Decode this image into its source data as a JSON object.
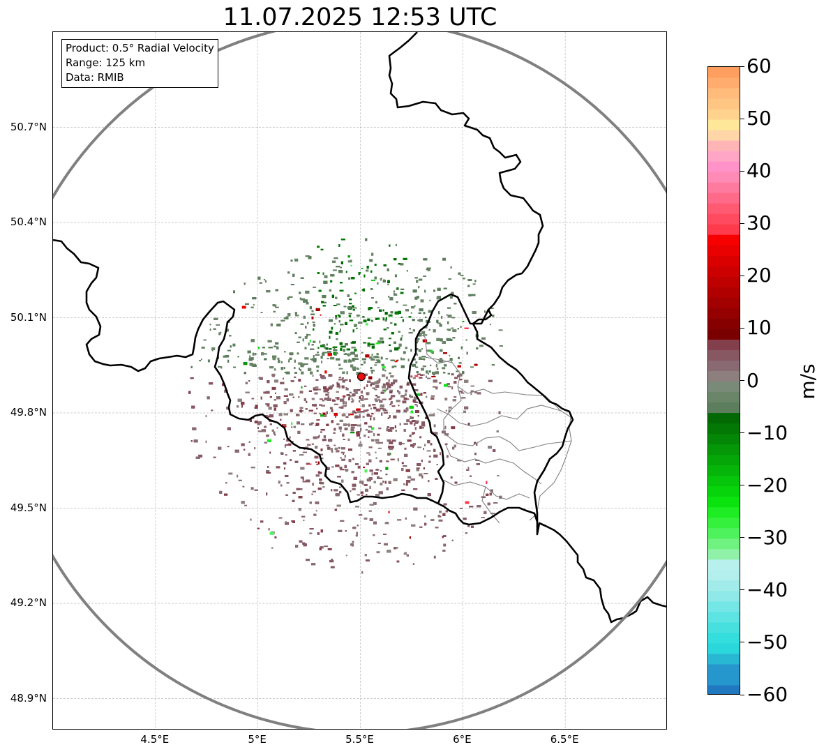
{
  "title": "11.07.2025 12:53 UTC",
  "info": {
    "product": "Product: 0.5° Radial Velocity",
    "range": "Range: 125 km",
    "source": "Data: RMIB"
  },
  "map": {
    "lon_range": [
      4.0,
      7.0
    ],
    "lat_range": [
      48.8,
      51.0
    ],
    "radar_site": {
      "lon": 5.505,
      "lat": 49.914
    },
    "range_km": 125,
    "lat_ticks": [
      {
        "value": 50.7,
        "label": "50.7°N"
      },
      {
        "value": 50.4,
        "label": "50.4°N"
      },
      {
        "value": 50.1,
        "label": "50.1°N"
      },
      {
        "value": 49.8,
        "label": "49.8°N"
      },
      {
        "value": 49.5,
        "label": "49.5°N"
      },
      {
        "value": 49.2,
        "label": "49.2°N"
      },
      {
        "value": 48.9,
        "label": "48.9°N"
      }
    ],
    "lon_ticks": [
      {
        "value": 4.5,
        "label": "4.5°E"
      },
      {
        "value": 5.0,
        "label": "5°E"
      },
      {
        "value": 5.5,
        "label": "5.5°E"
      },
      {
        "value": 6.0,
        "label": "6°E"
      },
      {
        "value": 6.5,
        "label": "6.5°E"
      }
    ],
    "colors": {
      "border": "#000000",
      "subborder": "#808080",
      "range_ring": "#808080",
      "grid": "#bbbbbb",
      "site": "#e81010"
    }
  },
  "colorbar": {
    "unit": "m/s",
    "min": -60,
    "max": 60,
    "ticks": [
      {
        "value": 60,
        "label": "60"
      },
      {
        "value": 50,
        "label": "50"
      },
      {
        "value": 40,
        "label": "40"
      },
      {
        "value": 30,
        "label": "30"
      },
      {
        "value": 20,
        "label": "20"
      },
      {
        "value": 10,
        "label": "10"
      },
      {
        "value": 0,
        "label": "0"
      },
      {
        "value": -10,
        "label": "−10"
      },
      {
        "value": -20,
        "label": "−20"
      },
      {
        "value": -30,
        "label": "−30"
      },
      {
        "value": -40,
        "label": "−40"
      },
      {
        "value": -50,
        "label": "−50"
      },
      {
        "value": -60,
        "label": "−60"
      }
    ],
    "stops": [
      {
        "from": -60,
        "to": -58,
        "color": "#1f78c0"
      },
      {
        "from": -58,
        "to": -54,
        "color": "#2597cc"
      },
      {
        "from": -54,
        "to": -52,
        "color": "#29b8d4"
      },
      {
        "from": -52,
        "to": -50,
        "color": "#2ad8dc"
      },
      {
        "from": -50,
        "to": -48,
        "color": "#33dedc"
      },
      {
        "from": -48,
        "to": -46,
        "color": "#48e0df"
      },
      {
        "from": -46,
        "to": -44,
        "color": "#5ee3e3"
      },
      {
        "from": -44,
        "to": -42,
        "color": "#75e6e6"
      },
      {
        "from": -42,
        "to": -40,
        "color": "#8ee9e8"
      },
      {
        "from": -40,
        "to": -38,
        "color": "#a1ecea"
      },
      {
        "from": -38,
        "to": -36,
        "color": "#b3efec"
      },
      {
        "from": -36,
        "to": -34,
        "color": "#b8f0ee"
      },
      {
        "from": -34,
        "to": -32,
        "color": "#8ff2a8"
      },
      {
        "from": -32,
        "to": -30,
        "color": "#6ff27f"
      },
      {
        "from": -30,
        "to": -28,
        "color": "#4ef25c"
      },
      {
        "from": -28,
        "to": -26,
        "color": "#35f03c"
      },
      {
        "from": -26,
        "to": -24,
        "color": "#1ded22"
      },
      {
        "from": -24,
        "to": -22,
        "color": "#0be30f"
      },
      {
        "from": -22,
        "to": -20,
        "color": "#08d40b"
      },
      {
        "from": -20,
        "to": -18,
        "color": "#07c50a"
      },
      {
        "from": -18,
        "to": -16,
        "color": "#06b509"
      },
      {
        "from": -16,
        "to": -14,
        "color": "#05a608"
      },
      {
        "from": -14,
        "to": -12,
        "color": "#059707"
      },
      {
        "from": -12,
        "to": -10,
        "color": "#048706"
      },
      {
        "from": -10,
        "to": -8,
        "color": "#037805"
      },
      {
        "from": -8,
        "to": -6,
        "color": "#036905"
      },
      {
        "from": -6,
        "to": -4,
        "color": "#5c7e5c"
      },
      {
        "from": -4,
        "to": -2,
        "color": "#6a8567"
      },
      {
        "from": -2,
        "to": 0,
        "color": "#7a8a78"
      },
      {
        "from": 0,
        "to": 2,
        "color": "#8c7f7d"
      },
      {
        "from": 2,
        "to": 4,
        "color": "#8a6a72"
      },
      {
        "from": 4,
        "to": 6,
        "color": "#875762"
      },
      {
        "from": 6,
        "to": 8,
        "color": "#833f4b"
      },
      {
        "from": 8,
        "to": 10,
        "color": "#7a0000"
      },
      {
        "from": 10,
        "to": 12,
        "color": "#870000"
      },
      {
        "from": 12,
        "to": 14,
        "color": "#950000"
      },
      {
        "from": 14,
        "to": 16,
        "color": "#a30000"
      },
      {
        "from": 16,
        "to": 18,
        "color": "#b10000"
      },
      {
        "from": 18,
        "to": 20,
        "color": "#bf0000"
      },
      {
        "from": 20,
        "to": 22,
        "color": "#cd0000"
      },
      {
        "from": 22,
        "to": 24,
        "color": "#db0000"
      },
      {
        "from": 24,
        "to": 26,
        "color": "#e90000"
      },
      {
        "from": 26,
        "to": 28,
        "color": "#f70000"
      },
      {
        "from": 28,
        "to": 30,
        "color": "#ff3a4d"
      },
      {
        "from": 30,
        "to": 32,
        "color": "#ff4a5f"
      },
      {
        "from": 32,
        "to": 34,
        "color": "#ff5a72"
      },
      {
        "from": 34,
        "to": 36,
        "color": "#ff6a88"
      },
      {
        "from": 36,
        "to": 38,
        "color": "#ff7a9f"
      },
      {
        "from": 38,
        "to": 40,
        "color": "#ff8ab6"
      },
      {
        "from": 40,
        "to": 42,
        "color": "#ff92c9"
      },
      {
        "from": 42,
        "to": 44,
        "color": "#ffa6c6"
      },
      {
        "from": 44,
        "to": 46,
        "color": "#ffb5b5"
      },
      {
        "from": 46,
        "to": 48,
        "color": "#ffd6a8"
      },
      {
        "from": 48,
        "to": 50,
        "color": "#ffe79a"
      },
      {
        "from": 50,
        "to": 52,
        "color": "#ffd38e"
      },
      {
        "from": 52,
        "to": 54,
        "color": "#ffc583"
      },
      {
        "from": 54,
        "to": 56,
        "color": "#ffbb7a"
      },
      {
        "from": 56,
        "to": 58,
        "color": "#ffac6e"
      },
      {
        "from": 58,
        "to": 60,
        "color": "#ff9f5f"
      }
    ]
  }
}
